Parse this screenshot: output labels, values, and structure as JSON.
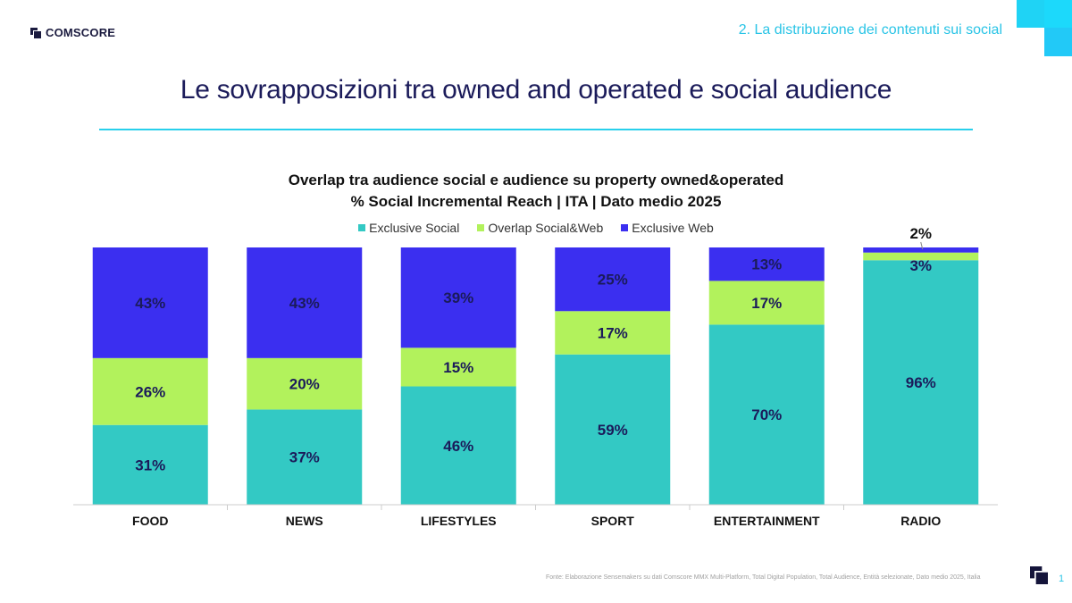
{
  "header": {
    "logo_text": "COMSCORE",
    "section_title": "2. La distribuzione dei contenuti sui social",
    "page_title": "Le sovrapposizioni tra owned and operated e social audience"
  },
  "chart_data": {
    "type": "bar",
    "stacked": true,
    "percent_stacked": true,
    "title": "Overlap tra audience social e audience su property owned&operated",
    "subtitle": "% Social Incremental Reach | ITA | Dato medio 2025",
    "categories": [
      "FOOD",
      "NEWS",
      "LIFESTYLES",
      "SPORT",
      "ENTERTAINMENT",
      "RADIO"
    ],
    "series": [
      {
        "name": "Exclusive Social",
        "color": "#33c9c4",
        "values": [
          31,
          37,
          46,
          59,
          70,
          96
        ],
        "labels": [
          "31%",
          "37%",
          "46%",
          "59%",
          "70%",
          "96%"
        ]
      },
      {
        "name": "Overlap Social&Web",
        "color": "#b2f25c",
        "values": [
          26,
          20,
          15,
          17,
          17,
          3
        ],
        "labels": [
          "26%",
          "20%",
          "15%",
          "17%",
          "17%",
          "3%"
        ]
      },
      {
        "name": "Exclusive Web",
        "color": "#3b2ff0",
        "values": [
          43,
          43,
          39,
          25,
          13,
          2
        ],
        "labels": [
          "43%",
          "43%",
          "39%",
          "25%",
          "13%",
          "2%"
        ]
      }
    ],
    "legend_position": "top",
    "grid": false,
    "ylim": [
      0,
      100
    ]
  },
  "footer": {
    "source": "Fonte: Elaborazione Sensemakers su dati Comscore MMX Multi-Platform, Total Digital Population, Total Audience, Entità selezionate, Dato medio 2025, Italia",
    "page_number": "1"
  }
}
